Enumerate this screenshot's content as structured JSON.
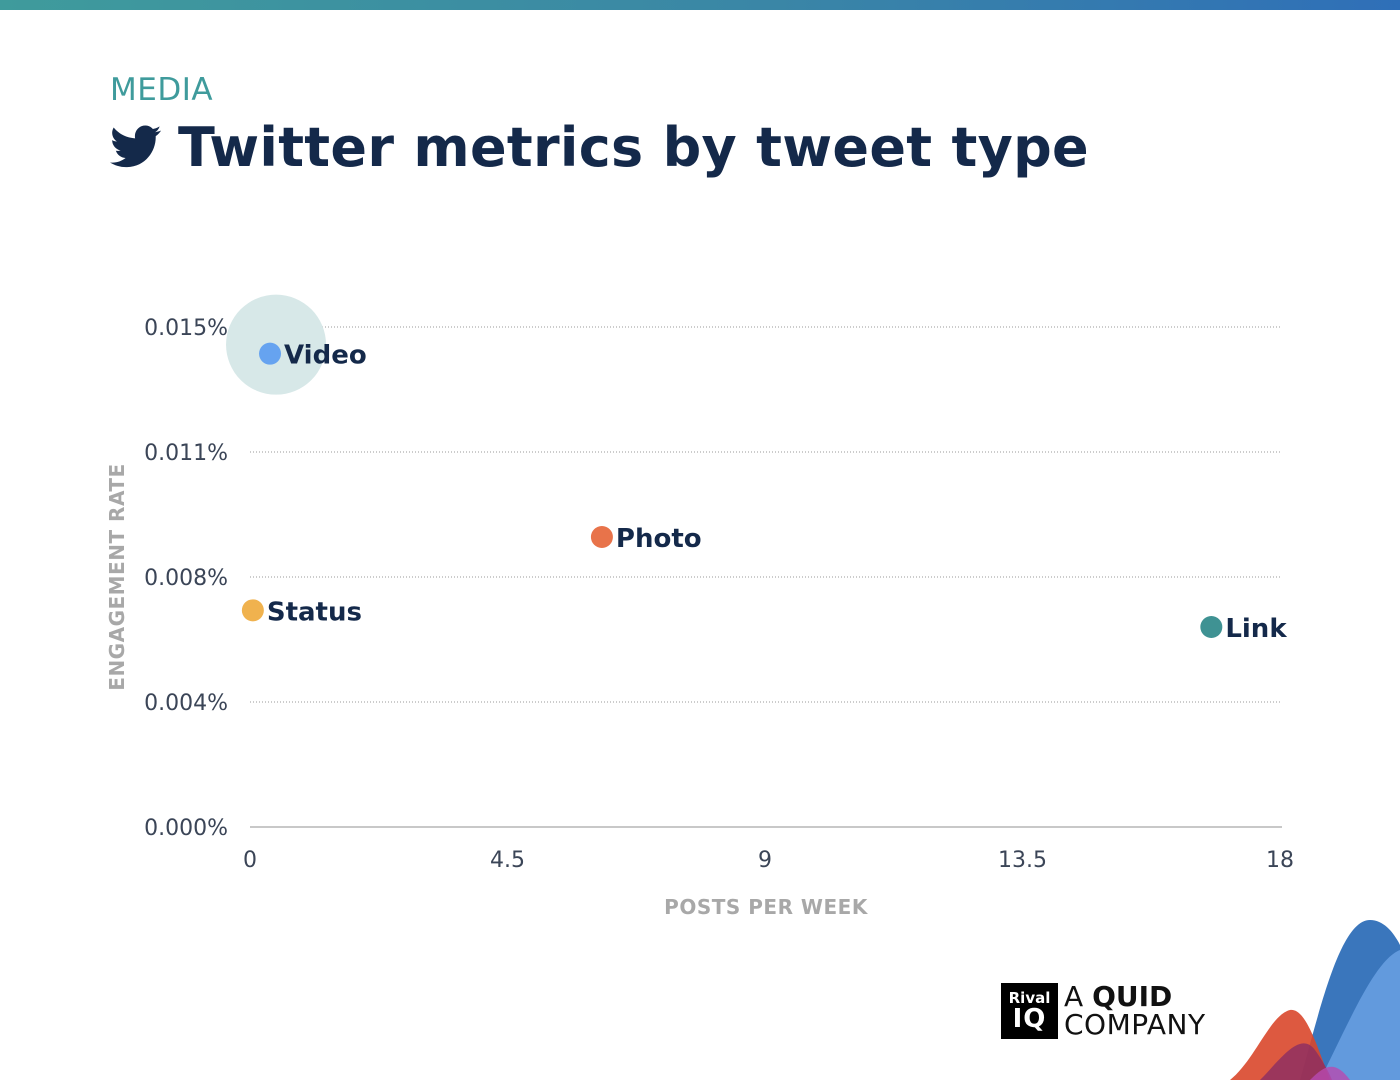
{
  "eyebrow": "MEDIA",
  "title": "Twitter metrics by tweet type",
  "icons": {
    "title_icon": "twitter-bird-icon"
  },
  "colors": {
    "top_bar": "#3a86a6",
    "eyebrow": "#3f9b9c",
    "title": "#14294a",
    "video": "#66a3f0",
    "photo": "#e8734a",
    "status": "#f0b24e",
    "link": "#3f9293",
    "highlight": "#d7e8e8"
  },
  "chart_data": {
    "type": "scatter",
    "title": "Twitter metrics by tweet type",
    "xlabel": "POSTS PER WEEK",
    "ylabel": "ENGAGEMENT RATE",
    "xlim": [
      0,
      18
    ],
    "ylim": [
      0,
      0.015
    ],
    "x_ticks": [
      0,
      4.5,
      9,
      13.5,
      18
    ],
    "x_tick_labels": [
      "0",
      "4.5",
      "9",
      "13.5",
      "18"
    ],
    "y_ticks": [
      0,
      0.00375,
      0.0075,
      0.01125,
      0.015
    ],
    "y_tick_labels": [
      "0.000%",
      "0.004%",
      "0.008%",
      "0.011%",
      "0.015%"
    ],
    "y_unit": "%",
    "grid": "horizontal dotted",
    "highlighted_point": "Video",
    "points": [
      {
        "name": "Video",
        "x": 0.35,
        "y": 0.0142,
        "color": "#66a3f0"
      },
      {
        "name": "Photo",
        "x": 6.15,
        "y": 0.0087,
        "color": "#e8734a"
      },
      {
        "name": "Status",
        "x": 0.05,
        "y": 0.0065,
        "color": "#f0b24e"
      },
      {
        "name": "Link",
        "x": 16.8,
        "y": 0.006,
        "color": "#3f9293"
      }
    ]
  },
  "logo": {
    "line1": "Rival",
    "line2": "IQ",
    "tagline_a": "A",
    "tagline_quid": "QUID",
    "tagline_company": "COMPANY"
  }
}
